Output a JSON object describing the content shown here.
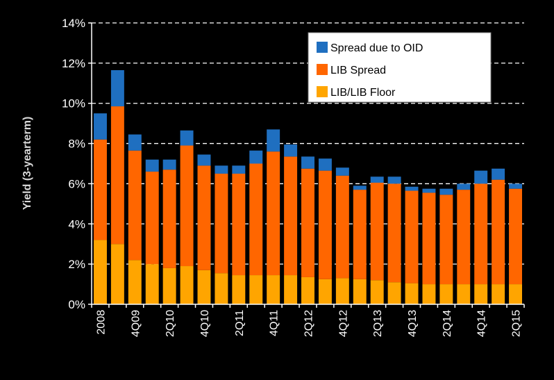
{
  "chart_data": {
    "type": "bar",
    "stacked": true,
    "ylabel": "Yield (3-yearterm)",
    "ylim": [
      0,
      14
    ],
    "yticks": [
      "0%",
      "2%",
      "4%",
      "6%",
      "8%",
      "10%",
      "12%",
      "14%"
    ],
    "grid": "horizontal dashed",
    "legend_position": "top-right",
    "categories": [
      "2008",
      "",
      "4Q09",
      "",
      "2Q10",
      "",
      "4Q10",
      "",
      "2Q11",
      "",
      "4Q11",
      "",
      "2Q12",
      "",
      "4Q12",
      "",
      "2Q13",
      "",
      "4Q13",
      "",
      "2Q14",
      "",
      "4Q14",
      "",
      "2Q15"
    ],
    "series": [
      {
        "name": "LIB/LIB Floor",
        "color": "#ffa500",
        "values": [
          3.2,
          3.0,
          2.2,
          2.0,
          1.8,
          1.9,
          1.7,
          1.55,
          1.45,
          1.45,
          1.45,
          1.45,
          1.35,
          1.25,
          1.3,
          1.25,
          1.2,
          1.1,
          1.05,
          1.0,
          1.0,
          1.0,
          1.0,
          1.0,
          1.0
        ]
      },
      {
        "name": "LIB Spread",
        "color": "#ff6600",
        "values": [
          5.0,
          6.85,
          5.45,
          4.6,
          4.9,
          6.0,
          5.2,
          4.95,
          5.05,
          5.55,
          6.15,
          5.9,
          5.4,
          5.4,
          5.1,
          4.45,
          4.85,
          4.9,
          4.6,
          4.55,
          4.45,
          4.7,
          5.0,
          5.2,
          4.75
        ]
      },
      {
        "name": "Spread due to OID",
        "color": "#1f6fc0",
        "values": [
          1.3,
          1.8,
          0.8,
          0.6,
          0.5,
          0.75,
          0.55,
          0.4,
          0.4,
          0.65,
          1.1,
          0.6,
          0.6,
          0.6,
          0.4,
          0.2,
          0.3,
          0.35,
          0.2,
          0.2,
          0.3,
          0.3,
          0.65,
          0.55,
          0.25
        ]
      }
    ]
  },
  "legend": {
    "items": [
      {
        "label": "Spread due to OID",
        "color": "#1f6fc0"
      },
      {
        "label": "LIB Spread",
        "color": "#ff6600"
      },
      {
        "label": "LIB/LIB Floor",
        "color": "#ffa500"
      }
    ]
  }
}
